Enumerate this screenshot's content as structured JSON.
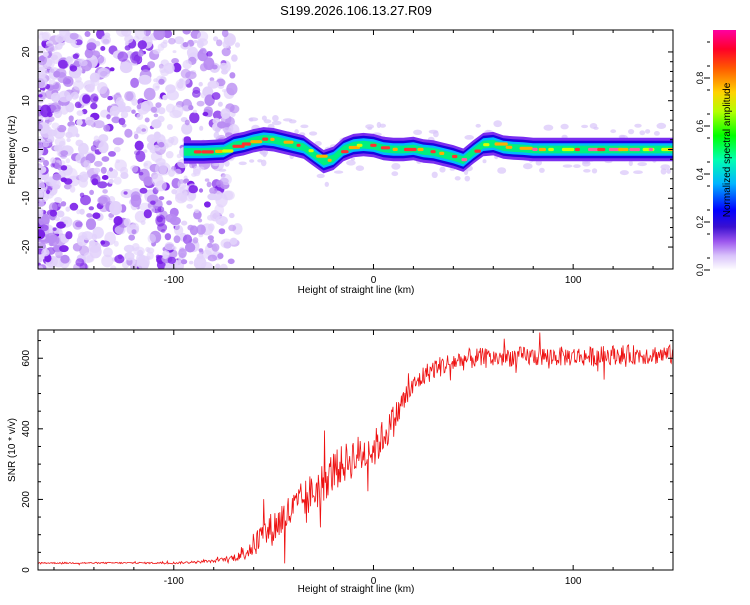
{
  "title": "S199.2026.106.13.27.R09",
  "chart_data": [
    {
      "type": "heatmap",
      "title": "S199.2026.106.13.27.R09",
      "xlabel": "Height of straight line (km)",
      "ylabel": "Frequency (Hz)",
      "xlim": [
        -168,
        150
      ],
      "ylim": [
        -24.5,
        24.5
      ],
      "x_ticks": [
        -100,
        0,
        100
      ],
      "y_ticks": [
        -20,
        -10,
        0,
        10,
        20
      ],
      "colorbar": {
        "label": "Normalized spectral amplitude",
        "range": [
          0.0,
          1.0
        ],
        "ticks": [
          0.0,
          0.2,
          0.4,
          0.6,
          0.8
        ],
        "tick_labels": [
          "0.0",
          "0.2",
          "0.4",
          "0.6",
          "0.8"
        ],
        "colormap": [
          "#ffffff",
          "#b07cf0",
          "#4b0fd8",
          "#0000ff",
          "#00c8ff",
          "#00ff60",
          "#c8ff00",
          "#ffb400",
          "#ff0000",
          "#ff00a0"
        ]
      },
      "noise_region_x": [
        -168,
        -80
      ],
      "ridge": {
        "start_x": -95,
        "x": [
          -95,
          -85,
          -75,
          -70,
          -65,
          -60,
          -55,
          -50,
          -45,
          -40,
          -35,
          -30,
          -25,
          -20,
          -15,
          -10,
          -5,
          0,
          5,
          10,
          15,
          20,
          25,
          30,
          35,
          40,
          45,
          50,
          55,
          60,
          65,
          70,
          75,
          80,
          90,
          100,
          110,
          120,
          130,
          140,
          150
        ],
        "freq": [
          -0.5,
          -0.5,
          -0.3,
          0.8,
          1.2,
          1.8,
          2.2,
          2.0,
          1.5,
          1.0,
          0.5,
          -1.0,
          -2.5,
          -1.8,
          0.0,
          0.8,
          1.0,
          0.8,
          0.2,
          0.0,
          0.0,
          0.2,
          -0.3,
          -0.5,
          -1.0,
          -1.5,
          -2.2,
          -0.5,
          1.0,
          1.2,
          0.5,
          0.3,
          0.2,
          0.0,
          0.0,
          0.0,
          0.0,
          0.0,
          0.0,
          0.0,
          0.0
        ],
        "amplitude_class": "high"
      }
    },
    {
      "type": "line",
      "title": "",
      "xlabel": "Height of straight line (km)",
      "ylabel": "SNR (10 * v/v)",
      "xlim": [
        -168,
        150
      ],
      "ylim": [
        0,
        680
      ],
      "x_ticks": [
        -100,
        0,
        100
      ],
      "y_ticks": [
        0,
        200,
        400,
        600
      ],
      "series": [
        {
          "name": "SNR",
          "color": "#ee1111",
          "x": [
            -168,
            -140,
            -120,
            -100,
            -90,
            -80,
            -75,
            -70,
            -65,
            -60,
            -55,
            -50,
            -45,
            -40,
            -35,
            -30,
            -25,
            -20,
            -15,
            -10,
            -5,
            0,
            5,
            10,
            15,
            20,
            25,
            30,
            35,
            40,
            50,
            60,
            70,
            80,
            90,
            100,
            110,
            120,
            130,
            140,
            150
          ],
          "values": [
            20,
            20,
            20,
            20,
            22,
            25,
            30,
            35,
            50,
            70,
            100,
            120,
            150,
            170,
            200,
            220,
            250,
            280,
            300,
            320,
            330,
            340,
            380,
            420,
            480,
            520,
            550,
            570,
            580,
            590,
            600,
            600,
            605,
            605,
            605,
            605,
            605,
            610,
            610,
            610,
            610
          ],
          "noise_amplitude": [
            2,
            2,
            2,
            3,
            3,
            4,
            6,
            10,
            25,
            35,
            45,
            50,
            55,
            55,
            55,
            60,
            60,
            60,
            55,
            60,
            55,
            55,
            50,
            45,
            40,
            30,
            30,
            30,
            30,
            30,
            30,
            28,
            28,
            28,
            28,
            28,
            28,
            28,
            28,
            28,
            28
          ]
        }
      ]
    }
  ]
}
